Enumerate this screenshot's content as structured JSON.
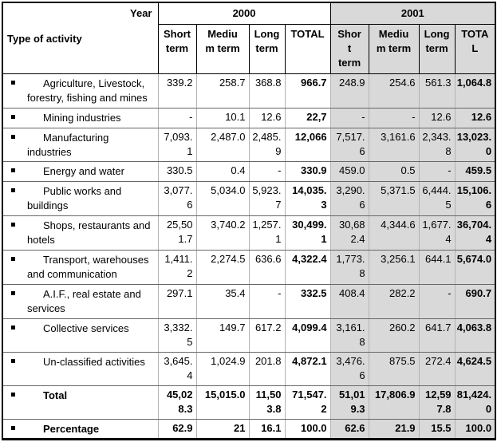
{
  "header": {
    "year_label": "Year",
    "activity_label": "Type of activity",
    "groups": [
      {
        "year": "2000",
        "columns": [
          "Short\nterm",
          "Mediu\nm term",
          "Long\nterm",
          "TOTAL"
        ]
      },
      {
        "year": "2001",
        "columns": [
          "Shor\nt\nterm",
          "Mediu\nm term",
          "Long\nterm",
          "TOTA\nL"
        ]
      }
    ]
  },
  "rows": [
    {
      "label": "Agriculture, Livestock, forestry, fishing and mines",
      "bold": false,
      "y2000": [
        "339.2",
        "258.7",
        "368.8",
        "966.7"
      ],
      "y2001": [
        "248.9",
        "254.6",
        "561.3",
        "1,064.8"
      ]
    },
    {
      "label": "Mining industries",
      "bold": false,
      "y2000": [
        "-",
        "10.1",
        "12.6",
        "22,7"
      ],
      "y2001": [
        "-",
        "-",
        "12.6",
        "12.6"
      ]
    },
    {
      "label": "Manufacturing industries",
      "bold": false,
      "y2000": [
        "7,093.1",
        "2,487.0",
        "2,485.9",
        "12,066"
      ],
      "y2001": [
        "7,517.6",
        "3,161.6",
        "2,343.8",
        "13,023.0"
      ]
    },
    {
      "label": "Energy and water",
      "bold": false,
      "y2000": [
        "330.5",
        "0.4",
        "-",
        "330.9"
      ],
      "y2001": [
        "459.0",
        "0.5",
        "-",
        "459.5"
      ]
    },
    {
      "label": "Public works and buildings",
      "bold": false,
      "y2000": [
        "3,077.6",
        "5,034.0",
        "5,923.7",
        "14,035.3"
      ],
      "y2001": [
        "3,290.6",
        "5,371.5",
        "6,444.5",
        "15,106.6"
      ]
    },
    {
      "label": "Shops, restaurants and hotels",
      "bold": false,
      "y2000": [
        "25,501.7",
        "3,740.2",
        "1,257.1",
        "30,499.1"
      ],
      "y2001": [
        "30,682.4",
        "4,344.6",
        "1,677.4",
        "36,704.4"
      ]
    },
    {
      "label": "Transport, warehouses and communication",
      "bold": false,
      "y2000": [
        "1,411.2",
        "2,274.5",
        "636.6",
        "4,322.4"
      ],
      "y2001": [
        "1,773.8",
        "3,256.1",
        "644.1",
        "5,674.0"
      ]
    },
    {
      "label": "A.I.F., real estate and services",
      "bold": false,
      "y2000": [
        "297.1",
        "35.4",
        "-",
        "332.5"
      ],
      "y2001": [
        "408.4",
        "282.2",
        "-",
        "690.7"
      ]
    },
    {
      "label": "Collective services",
      "bold": false,
      "y2000": [
        "3,332.5",
        "149.7",
        "617.2",
        "4,099.4"
      ],
      "y2001": [
        "3,161.8",
        "260.2",
        "641.7",
        "4,063.8"
      ]
    },
    {
      "label": "Un-classified activities",
      "bold": false,
      "y2000": [
        "3,645.4",
        "1,024.9",
        "201.8",
        "4,872.1"
      ],
      "y2001": [
        "3,476.6",
        "875.5",
        "272.4",
        "4,624.5"
      ]
    },
    {
      "label": "Total",
      "bold": true,
      "y2000": [
        "45,028.3",
        "15,015.0",
        "11,503.8",
        "71,547.2"
      ],
      "y2001": [
        "51,019.3",
        "17,806.9",
        "12,597.8",
        "81,424.0"
      ]
    },
    {
      "label": "Percentage",
      "bold": true,
      "y2000": [
        "62.9",
        "21",
        "16.1",
        "100.0"
      ],
      "y2001": [
        "62.6",
        "21.9",
        "15.5",
        "100.0"
      ]
    }
  ],
  "colors": {
    "highlight_2001_bg": "#d9d9d9",
    "row_border": "#676767",
    "column_border": "#b3b3b3",
    "outer_border": "#000000"
  }
}
